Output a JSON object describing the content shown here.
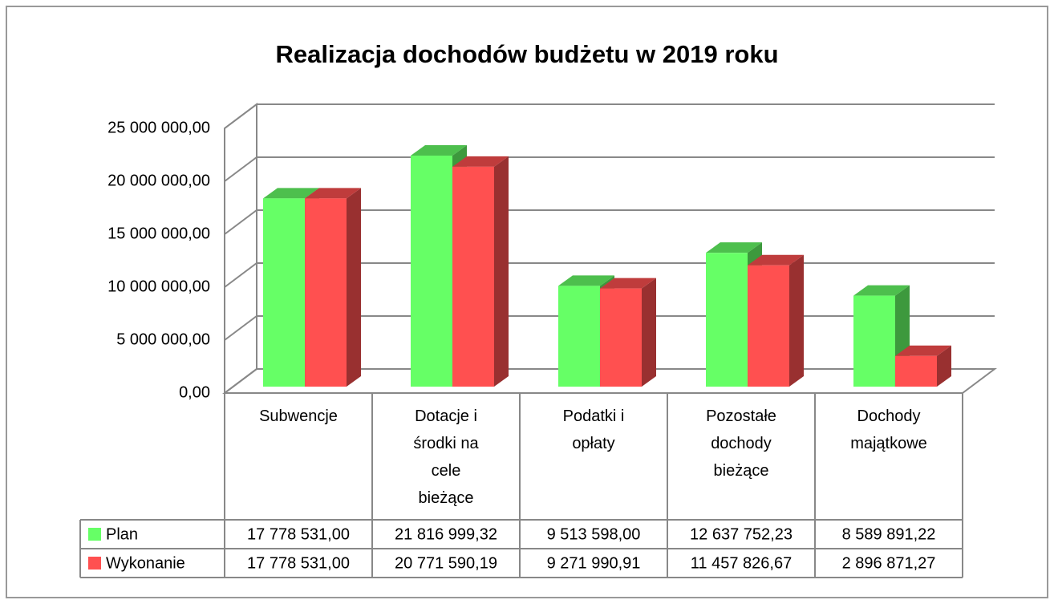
{
  "chart_data": {
    "type": "bar3d",
    "title": "Realizacja dochodów budżetu w 2019 roku",
    "categories": [
      "Subwencje",
      "Dotacje i środki na cele bieżące",
      "Podatki i opłaty",
      "Pozostałe dochody bieżące",
      "Dochody majątkowe"
    ],
    "series": [
      {
        "name": "Plan",
        "color": "#66ff66",
        "values": [
          17778531.0,
          21816999.32,
          9513598.0,
          12637752.23,
          8589891.22
        ],
        "value_labels": [
          "17 778 531,00",
          "21 816 999,32",
          "9 513 598,00",
          "12 637 752,23",
          "8 589 891,22"
        ]
      },
      {
        "name": "Wykonanie",
        "color": "#ff5050",
        "values": [
          17778531.0,
          20771590.19,
          9271990.91,
          11457826.67,
          2896871.27
        ],
        "value_labels": [
          "17 778 531,00",
          "20 771 590,19",
          "9 271 990,91",
          "11 457 826,67",
          "2 896 871,27"
        ]
      }
    ],
    "ylim": [
      0,
      25000000
    ],
    "yticks": [
      {
        "value": 0,
        "label": "0,00"
      },
      {
        "value": 5000000,
        "label": "5 000 000,00"
      },
      {
        "value": 10000000,
        "label": "10 000 000,00"
      },
      {
        "value": 15000000,
        "label": "15 000 000,00"
      },
      {
        "value": 20000000,
        "label": "20 000 000,00"
      },
      {
        "value": 25000000,
        "label": "25 000 000,00"
      }
    ],
    "grid": true,
    "data_table": true
  }
}
